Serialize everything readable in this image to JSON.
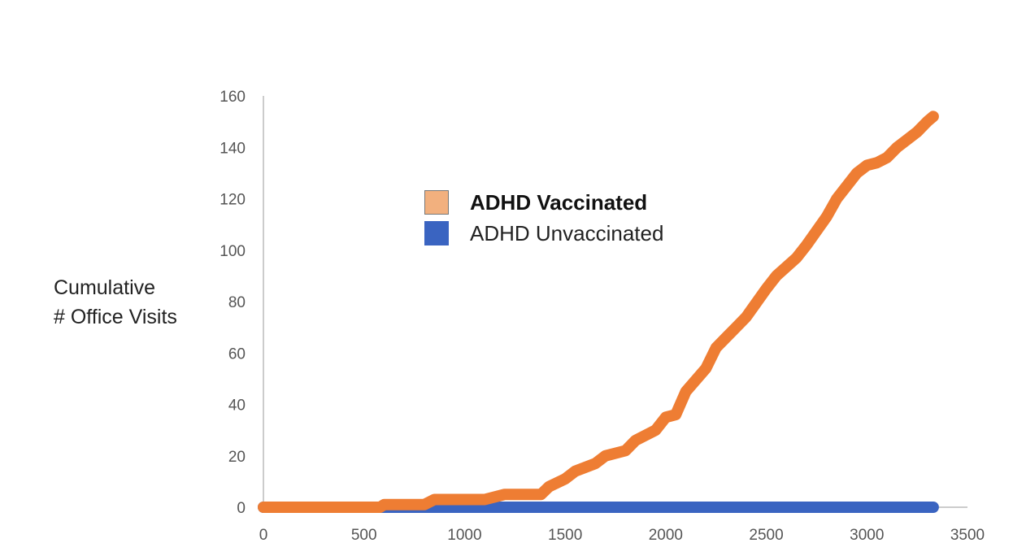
{
  "chart_data": {
    "type": "line",
    "title": "",
    "xlabel": "",
    "ylabel_lines": [
      "Cumulative",
      "# Office Visits"
    ],
    "xlim": [
      0,
      3500
    ],
    "ylim": [
      0,
      160
    ],
    "x_ticks": [
      "0",
      "500",
      "1000",
      "1500",
      "2000",
      "2500",
      "3000",
      "3500"
    ],
    "y_ticks": [
      "0",
      "20",
      "40",
      "60",
      "80",
      "100",
      "120",
      "140",
      "160"
    ],
    "grid": false,
    "legend_position": "upper-center",
    "series": [
      {
        "name": "ADHD Vaccinated",
        "color": "#ee7d33",
        "legend_swatch_color": "#f2b07e",
        "legend_bold": true,
        "x": [
          0,
          580,
          600,
          800,
          850,
          1100,
          1200,
          1380,
          1420,
          1500,
          1550,
          1650,
          1700,
          1800,
          1850,
          1950,
          2000,
          2050,
          2100,
          2200,
          2250,
          2350,
          2400,
          2500,
          2550,
          2650,
          2700,
          2800,
          2850,
          2950,
          3000,
          3050,
          3100,
          3150,
          3200,
          3250,
          3300,
          3330
        ],
        "y": [
          0,
          0,
          1,
          1,
          3,
          3,
          5,
          5,
          8,
          11,
          14,
          17,
          20,
          22,
          26,
          30,
          35,
          36,
          45,
          54,
          62,
          70,
          74,
          85,
          90,
          97,
          102,
          113,
          120,
          130,
          133,
          134,
          136,
          140,
          143,
          146,
          150,
          152
        ]
      },
      {
        "name": "ADHD Unvaccinated",
        "color": "#3a64c1",
        "legend_swatch_color": "#3a64c1",
        "legend_bold": false,
        "x": [
          0,
          600,
          3330
        ],
        "y": [
          0,
          0,
          0
        ]
      }
    ]
  }
}
